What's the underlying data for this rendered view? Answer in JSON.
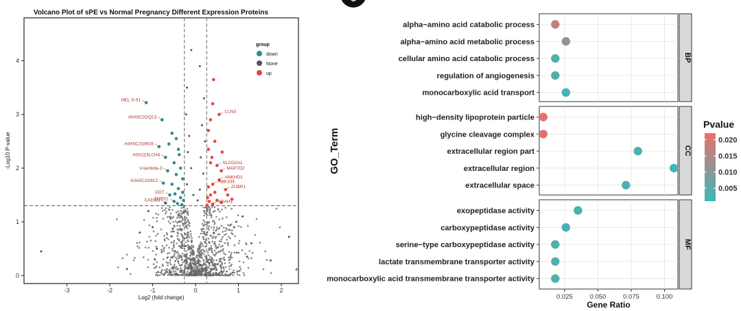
{
  "panel_badge": "C",
  "chart_data": [
    {
      "type": "scatter",
      "title": "Volcano Plot of sPE vs Normal Pregnancy Different Expression Proteins",
      "xlabel": "Log2 (fold change)",
      "ylabel": "-Log10 P-value",
      "xlim": [
        -4.0,
        2.4
      ],
      "ylim": [
        -0.15,
        4.8
      ],
      "xticks": [
        "-3",
        "-2",
        "-1",
        "0",
        "1",
        "2"
      ],
      "xtick_values": [
        -3,
        -2,
        -1,
        0,
        1,
        2
      ],
      "yticks": [
        "0",
        "1",
        "2",
        "3",
        "4"
      ],
      "ytick_values": [
        0,
        1,
        2,
        3,
        4
      ],
      "thresholds": {
        "x": [
          -0.26,
          0.26
        ],
        "y": 1.3
      },
      "legend": {
        "title": "group",
        "position": "top-right",
        "entries": [
          {
            "label": "down",
            "color": "#2e8b8f"
          },
          {
            "label": "None",
            "color": "#555555"
          },
          {
            "label": "up",
            "color": "#e8463c"
          }
        ]
      },
      "series": [
        {
          "name": "down",
          "points": [
            [
              -1.15,
              3.22
            ],
            [
              -0.78,
              2.9
            ],
            [
              -0.55,
              2.65
            ],
            [
              -0.45,
              2.55
            ],
            [
              -0.62,
              2.45
            ],
            [
              -0.4,
              2.35
            ],
            [
              -0.85,
              2.4
            ],
            [
              -0.7,
              2.2
            ],
            [
              -0.5,
              2.1
            ],
            [
              -0.35,
              2.0
            ],
            [
              -0.65,
              1.95
            ],
            [
              -0.45,
              1.88
            ],
            [
              -0.3,
              1.8
            ],
            [
              -0.75,
              1.72
            ],
            [
              -0.55,
              1.7
            ],
            [
              -0.4,
              1.62
            ],
            [
              -0.3,
              1.55
            ],
            [
              -0.6,
              1.5
            ],
            [
              -0.35,
              1.45
            ],
            [
              -0.28,
              1.4
            ],
            [
              -0.5,
              1.38
            ],
            [
              -0.42,
              1.34
            ],
            [
              -0.32,
              1.32
            ],
            [
              -0.7,
              1.35
            ],
            [
              -0.38,
              2.25
            ],
            [
              -0.48,
              1.52
            ]
          ]
        },
        {
          "name": "up",
          "points": [
            [
              0.42,
              3.65
            ],
            [
              0.55,
              3.0
            ],
            [
              0.4,
              3.2
            ],
            [
              0.35,
              2.9
            ],
            [
              0.3,
              2.7
            ],
            [
              0.45,
              2.5
            ],
            [
              0.3,
              2.35
            ],
            [
              0.35,
              2.1
            ],
            [
              0.5,
              2.05
            ],
            [
              0.6,
              1.95
            ],
            [
              0.55,
              1.78
            ],
            [
              0.4,
              1.7
            ],
            [
              0.3,
              1.65
            ],
            [
              0.7,
              1.6
            ],
            [
              0.45,
              1.55
            ],
            [
              0.35,
              1.5
            ],
            [
              0.28,
              1.45
            ],
            [
              0.5,
              1.4
            ],
            [
              0.32,
              1.38
            ],
            [
              0.6,
              1.36
            ],
            [
              0.4,
              1.33
            ],
            [
              0.27,
              1.31
            ],
            [
              0.75,
              1.5
            ],
            [
              0.85,
              1.42
            ],
            [
              0.38,
              2.2
            ],
            [
              0.62,
              2.3
            ]
          ]
        },
        {
          "name": "None",
          "points": [
            [
              -3.6,
              0.45
            ],
            [
              1.75,
              0.28
            ],
            [
              2.18,
              0.72
            ],
            [
              0.95,
              1.0
            ],
            [
              -1.6,
              0.12
            ],
            [
              1.2,
              0.35
            ],
            [
              -0.1,
              4.2
            ],
            [
              0.1,
              3.9
            ],
            [
              -0.2,
              3.5
            ],
            [
              0.2,
              3.3
            ],
            [
              -0.22,
              3.0
            ],
            [
              0.15,
              2.8
            ],
            [
              -0.15,
              2.6
            ],
            [
              0.22,
              2.5
            ],
            [
              -0.18,
              2.3
            ],
            [
              0.12,
              2.2
            ],
            [
              -0.1,
              2.0
            ],
            [
              0.18,
              1.9
            ],
            [
              -0.2,
              1.7
            ],
            [
              0.1,
              1.6
            ],
            [
              -0.05,
              1.5
            ],
            [
              0.05,
              1.4
            ],
            [
              -1.1,
              1.2
            ],
            [
              -1.3,
              0.8
            ],
            [
              0.9,
              0.9
            ],
            [
              1.1,
              1.1
            ],
            [
              -0.9,
              0.5
            ],
            [
              -1.0,
              0.9
            ],
            [
              1.3,
              0.6
            ],
            [
              -0.95,
              0.3
            ]
          ]
        }
      ],
      "labels": [
        {
          "text": "HEL-S-51",
          "x": -1.15,
          "y": 3.22,
          "color": "#b03020"
        },
        {
          "text": "A0A5C2GQ13",
          "x": -0.78,
          "y": 2.9,
          "color": "#b03020"
        },
        {
          "text": "A0A5C2GRG5",
          "x": -0.85,
          "y": 2.4,
          "color": "#b03020"
        },
        {
          "text": "A0A2Z4LCH4",
          "x": -0.7,
          "y": 2.2,
          "color": "#b03020"
        },
        {
          "text": "V-lambda-3",
          "x": -0.65,
          "y": 1.95,
          "color": "#b03020"
        },
        {
          "text": "A0A5C2G812",
          "x": -0.75,
          "y": 1.72,
          "color": "#b03020"
        },
        {
          "text": "DDT",
          "x": -0.6,
          "y": 1.5,
          "color": "#b03020"
        },
        {
          "text": "THBS1",
          "x": -0.5,
          "y": 1.38,
          "color": "#b03020"
        },
        {
          "text": "CADM3",
          "x": -0.7,
          "y": 1.35,
          "color": "#b03020"
        },
        {
          "text": "CLN3",
          "x": 0.55,
          "y": 3.0,
          "color": "#b03020"
        },
        {
          "text": "SLCO2A1",
          "x": 0.5,
          "y": 2.05,
          "color": "#b03020"
        },
        {
          "text": "MAP7D2",
          "x": 0.6,
          "y": 1.95,
          "color": "#b03020"
        },
        {
          "text": "ANKHD1",
          "x": 0.55,
          "y": 1.78,
          "color": "#b03020"
        },
        {
          "text": "ABK335",
          "x": 0.4,
          "y": 1.7,
          "color": "#b03020"
        },
        {
          "text": "ZUBR1",
          "x": 0.7,
          "y": 1.6,
          "color": "#b03020"
        },
        {
          "text": "ASAH1",
          "x": 0.4,
          "y": 1.33,
          "color": "#b03020"
        }
      ]
    },
    {
      "type": "scatter",
      "subtype": "dot",
      "xlabel": "Gene Ratio",
      "ylabel": "GO_Term",
      "xlim": [
        0.006,
        0.11
      ],
      "xticks": [
        "0.025",
        "0.050",
        "0.075",
        "0.100"
      ],
      "xtick_values": [
        0.025,
        0.05,
        0.075,
        0.1
      ],
      "color_legend": {
        "title": "Pvalue",
        "ticks": [
          "0.020",
          "0.015",
          "0.010",
          "0.005"
        ],
        "tick_values": [
          0.02,
          0.015,
          0.01,
          0.005
        ],
        "range": [
          0.001,
          0.022
        ],
        "low_color": "#3bb8b8",
        "high_color": "#e8706a"
      },
      "facets": [
        {
          "name": "BP",
          "terms": [
            {
              "term": "alpha−amino acid catabolic process",
              "ratio": 0.018,
              "pvalue": 0.017
            },
            {
              "term": "alpha−amino acid metabolic process",
              "ratio": 0.026,
              "pvalue": 0.012
            },
            {
              "term": "cellular amino acid catabolic process",
              "ratio": 0.018,
              "pvalue": 0.004
            },
            {
              "term": "regulation of angiogenesis",
              "ratio": 0.018,
              "pvalue": 0.004
            },
            {
              "term": "monocarboxylic acid transport",
              "ratio": 0.026,
              "pvalue": 0.002
            }
          ]
        },
        {
          "name": "CC",
          "terms": [
            {
              "term": "high−density lipoprotein particle",
              "ratio": 0.009,
              "pvalue": 0.021
            },
            {
              "term": "glycine cleavage complex",
              "ratio": 0.009,
              "pvalue": 0.021
            },
            {
              "term": "extracellular region part",
              "ratio": 0.08,
              "pvalue": 0.003
            },
            {
              "term": "extracellular region",
              "ratio": 0.107,
              "pvalue": 0.002
            },
            {
              "term": "extracellular space",
              "ratio": 0.071,
              "pvalue": 0.003
            }
          ]
        },
        {
          "name": "MF",
          "terms": [
            {
              "term": "exopeptidase activity",
              "ratio": 0.035,
              "pvalue": 0.003
            },
            {
              "term": "carboxypeptidase activity",
              "ratio": 0.026,
              "pvalue": 0.003
            },
            {
              "term": "serine−type carboxypeptidase activity",
              "ratio": 0.018,
              "pvalue": 0.004
            },
            {
              "term": "lactate transmembrane transporter activity",
              "ratio": 0.018,
              "pvalue": 0.004
            },
            {
              "term": "monocarboxylic acid transmembrane transporter activity",
              "ratio": 0.018,
              "pvalue": 0.004
            }
          ]
        }
      ]
    }
  ]
}
